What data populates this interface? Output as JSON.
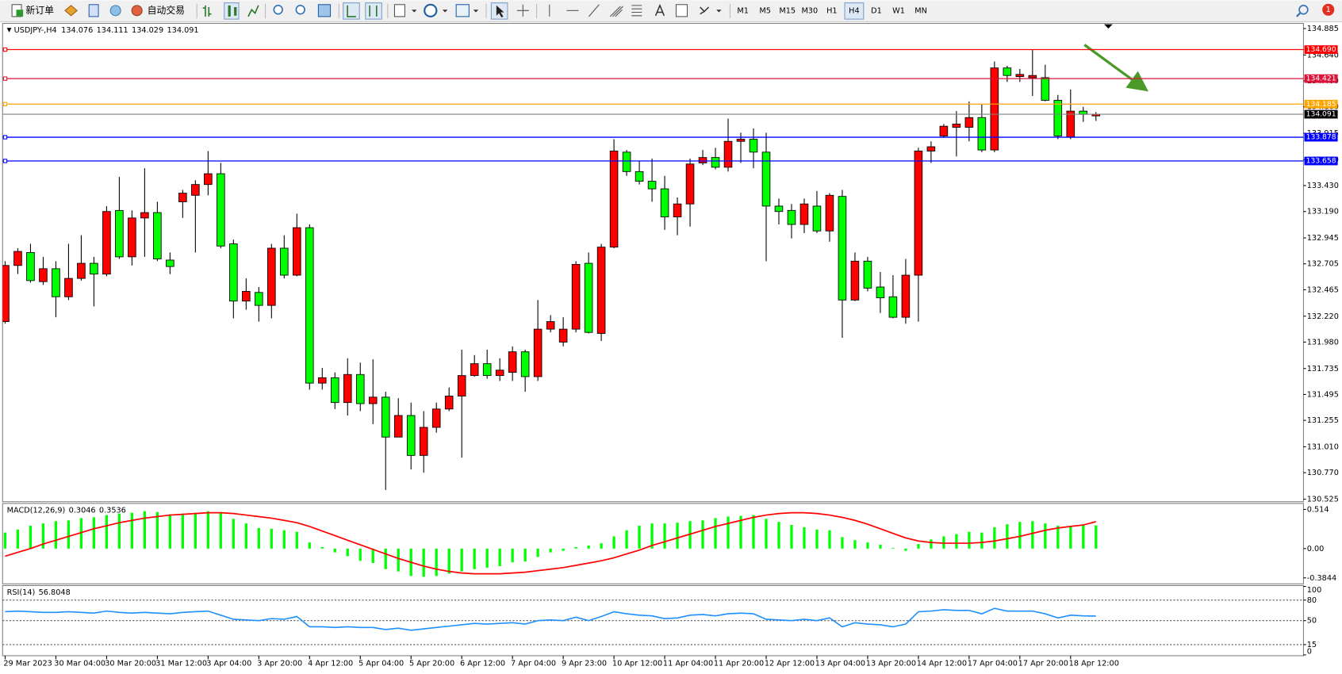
{
  "toolbar": {
    "new_order": "新订单",
    "auto_trading": "自动交易",
    "timeframes": [
      "M1",
      "M5",
      "M15",
      "M30",
      "H1",
      "H4",
      "D1",
      "W1",
      "MN"
    ],
    "notifications": "1"
  },
  "chart_data": [
    {
      "type": "candlestick",
      "title": "USDJPY-,H4",
      "up_color": "#ff0000",
      "down_color": "#00ff00",
      "current_color": "#808080",
      "categories": [
        "29 Mar 2023",
        null,
        null,
        null,
        "30 Mar 04:00",
        null,
        null,
        null,
        "30 Mar 20:00",
        null,
        null,
        null,
        "31 Mar 12:00",
        null,
        null,
        null,
        "3 Apr 04:00",
        null,
        null,
        null,
        "3 Apr 20:00",
        null,
        null,
        null,
        "4 Apr 12:00",
        null,
        null,
        null,
        "5 Apr 04:00",
        null,
        null,
        null,
        "5 Apr 20:00",
        null,
        null,
        null,
        "6 Apr 12:00",
        null,
        null,
        null,
        "7 Apr 04:00",
        null,
        null,
        null,
        "9 Apr 23:00",
        null,
        null,
        null,
        "10 Apr 12:00",
        null,
        null,
        null,
        "11 Apr 04:00",
        null,
        null,
        null,
        "11 Apr 20:00",
        null,
        null,
        null,
        "12 Apr 12:00",
        null,
        null,
        null,
        "13 Apr 04:00",
        null,
        null,
        null,
        "13 Apr 20:00",
        null,
        null,
        null,
        "14 Apr 12:00",
        null,
        null,
        null,
        "17 Apr 04:00",
        null,
        null,
        null,
        "17 Apr 20:00",
        null,
        null,
        null,
        "18 Apr 12:00",
        null,
        null
      ],
      "open": [
        132.17,
        132.69,
        132.81,
        132.54,
        132.66,
        132.4,
        132.57,
        132.71,
        132.61,
        133.2,
        132.77,
        133.13,
        133.18,
        132.74,
        133.28,
        133.34,
        133.44,
        133.54,
        132.89,
        132.36,
        132.44,
        132.32,
        132.85,
        132.6,
        133.04,
        131.6,
        131.65,
        131.42,
        131.68,
        131.41,
        131.47,
        131.1,
        131.3,
        130.93,
        131.19,
        131.36,
        131.48,
        131.67,
        131.78,
        131.67,
        131.7,
        131.89,
        131.66,
        132.1,
        131.98,
        132.1,
        132.71,
        132.06,
        132.86,
        133.74,
        133.56,
        133.47,
        133.4,
        133.14,
        133.26,
        133.64,
        133.69,
        133.6,
        133.84,
        133.86,
        133.74,
        133.24,
        133.2,
        133.07,
        133.24,
        133.01,
        133.33,
        132.37,
        132.73,
        132.49,
        132.4,
        132.21,
        132.6,
        133.75,
        133.89,
        133.97,
        133.97,
        134.06,
        133.76,
        134.52,
        134.44,
        134.43,
        134.43,
        134.22,
        133.88,
        134.12,
        134.076
      ],
      "high": [
        132.73,
        132.85,
        132.89,
        132.77,
        132.73,
        132.89,
        132.97,
        132.77,
        133.24,
        133.51,
        133.2,
        133.59,
        133.28,
        132.81,
        133.39,
        133.48,
        133.75,
        133.64,
        132.93,
        132.57,
        132.49,
        132.89,
        132.97,
        133.17,
        133.07,
        131.74,
        131.7,
        131.83,
        131.79,
        131.82,
        131.52,
        131.46,
        131.42,
        131.34,
        131.42,
        131.56,
        131.91,
        131.86,
        131.91,
        131.83,
        131.94,
        131.91,
        132.37,
        132.23,
        132.21,
        132.73,
        132.81,
        132.89,
        133.86,
        133.76,
        133.66,
        133.68,
        133.52,
        133.32,
        133.68,
        133.76,
        133.78,
        134.05,
        133.92,
        133.96,
        133.92,
        133.31,
        133.26,
        133.31,
        133.38,
        133.36,
        133.39,
        132.81,
        132.77,
        132.63,
        132.6,
        132.75,
        133.78,
        133.84,
        134.0,
        134.12,
        134.21,
        134.18,
        134.58,
        134.54,
        134.51,
        134.69,
        134.55,
        134.27,
        134.32,
        134.16,
        134.111
      ],
      "low": [
        132.15,
        132.61,
        132.53,
        132.51,
        132.21,
        132.37,
        132.55,
        132.31,
        132.59,
        132.75,
        132.69,
        132.77,
        132.73,
        132.61,
        133.13,
        132.81,
        133.34,
        132.85,
        132.2,
        132.28,
        132.17,
        132.2,
        132.57,
        132.59,
        131.54,
        131.54,
        131.36,
        131.3,
        131.34,
        131.22,
        130.61,
        131.1,
        130.8,
        130.77,
        131.14,
        131.34,
        130.91,
        131.66,
        131.64,
        131.62,
        131.62,
        131.52,
        131.62,
        132.07,
        131.94,
        132.07,
        132.06,
        131.99,
        132.85,
        133.52,
        133.44,
        133.28,
        133.02,
        132.97,
        133.05,
        133.62,
        133.58,
        133.56,
        133.64,
        133.59,
        132.73,
        133.07,
        132.94,
        132.99,
        132.99,
        132.91,
        132.02,
        132.36,
        132.45,
        132.25,
        132.2,
        132.15,
        132.17,
        133.64,
        133.88,
        133.7,
        133.84,
        133.74,
        133.74,
        134.39,
        134.39,
        134.26,
        134.21,
        133.86,
        133.86,
        134.02,
        134.029
      ],
      "close": [
        132.69,
        132.82,
        132.55,
        132.66,
        132.4,
        132.57,
        132.71,
        132.61,
        133.19,
        132.77,
        133.13,
        133.18,
        132.75,
        132.68,
        133.36,
        133.44,
        133.54,
        132.87,
        132.36,
        132.45,
        132.32,
        132.85,
        132.6,
        133.04,
        131.6,
        131.65,
        131.42,
        131.68,
        131.41,
        131.47,
        131.1,
        131.3,
        130.93,
        131.19,
        131.36,
        131.48,
        131.67,
        131.78,
        131.67,
        131.72,
        131.89,
        131.66,
        132.1,
        132.17,
        132.1,
        132.7,
        132.07,
        132.86,
        133.75,
        133.56,
        133.47,
        133.4,
        133.14,
        133.26,
        133.63,
        133.69,
        133.6,
        133.84,
        133.86,
        133.74,
        133.24,
        133.19,
        133.07,
        133.26,
        133.01,
        133.34,
        132.37,
        132.73,
        132.48,
        132.39,
        132.21,
        132.6,
        133.75,
        133.79,
        133.98,
        134.0,
        134.06,
        133.76,
        134.52,
        134.45,
        134.46,
        134.45,
        134.22,
        133.89,
        134.12,
        134.09,
        134.091
      ],
      "levels": [
        {
          "value": 134.69,
          "label": "134.690",
          "color": "#ff0000"
        },
        {
          "value": 134.421,
          "color": "#dc143c"
        },
        {
          "value": 134.185,
          "color": "#ffa500"
        },
        {
          "value": 133.878,
          "color": "#0000ff"
        },
        {
          "value": 133.658,
          "color": "#0000ff"
        }
      ],
      "ylim": [
        130.525,
        134.885
      ],
      "yticks": [
        134.885,
        {
          "value": 134.64,
          "label": "134.640"
        },
        {
          "value": 134.4,
          "label": "134.400"
        },
        {
          "value": 134.16,
          "label": "134.160"
        },
        133.915,
        {
          "value": 133.67,
          "label": "133.670"
        },
        {
          "value": 133.43,
          "label": "133.430"
        },
        {
          "value": 133.19,
          "label": "133.190"
        },
        132.945,
        132.705,
        132.465,
        {
          "value": 132.22,
          "label": "132.220"
        },
        {
          "value": 131.98,
          "label": "131.980"
        },
        131.735,
        131.495,
        131.255,
        {
          "value": 131.01,
          "label": "131.010"
        },
        {
          "value": 130.77,
          "label": "130.770"
        },
        130.525
      ]
    },
    {
      "type": "macd",
      "title": "MACD(12,26,9)",
      "histogram": {
        "color": "#00ff00",
        "values": [
          0.21,
          0.25,
          0.3,
          0.33,
          0.36,
          0.37,
          0.4,
          0.41,
          0.44,
          0.46,
          0.47,
          0.49,
          0.48,
          0.45,
          0.46,
          0.47,
          0.49,
          0.48,
          0.39,
          0.33,
          0.27,
          0.26,
          0.24,
          0.22,
          0.08,
          0.02,
          -0.05,
          -0.1,
          -0.16,
          -0.19,
          -0.27,
          -0.3,
          -0.36,
          -0.37,
          -0.36,
          -0.33,
          -0.3,
          -0.27,
          -0.25,
          -0.23,
          -0.18,
          -0.17,
          -0.11,
          -0.05,
          -0.03,
          0.02,
          0.04,
          0.07,
          0.16,
          0.24,
          0.3,
          0.33,
          0.33,
          0.34,
          0.36,
          0.37,
          0.4,
          0.42,
          0.43,
          0.44,
          0.39,
          0.35,
          0.31,
          0.28,
          0.25,
          0.24,
          0.15,
          0.11,
          0.08,
          0.05,
          0.01,
          -0.03,
          0.06,
          0.12,
          0.16,
          0.19,
          0.22,
          0.21,
          0.28,
          0.32,
          0.35,
          0.36,
          0.33,
          0.3,
          0.3,
          0.31,
          0.3046
        ]
      },
      "signal": {
        "color": "#ff0000",
        "values": [
          -0.1,
          -0.05,
          0.0,
          0.06,
          0.11,
          0.16,
          0.21,
          0.26,
          0.3,
          0.34,
          0.37,
          0.4,
          0.42,
          0.44,
          0.45,
          0.46,
          0.47,
          0.47,
          0.46,
          0.44,
          0.42,
          0.4,
          0.37,
          0.34,
          0.29,
          0.23,
          0.17,
          0.11,
          0.05,
          -0.01,
          -0.07,
          -0.13,
          -0.18,
          -0.23,
          -0.27,
          -0.3,
          -0.32,
          -0.33,
          -0.33,
          -0.33,
          -0.32,
          -0.31,
          -0.29,
          -0.27,
          -0.25,
          -0.22,
          -0.19,
          -0.16,
          -0.12,
          -0.07,
          -0.02,
          0.04,
          0.09,
          0.14,
          0.19,
          0.24,
          0.29,
          0.33,
          0.37,
          0.41,
          0.44,
          0.46,
          0.47,
          0.47,
          0.46,
          0.44,
          0.41,
          0.37,
          0.32,
          0.26,
          0.2,
          0.14,
          0.1,
          0.08,
          0.07,
          0.07,
          0.07,
          0.08,
          0.1,
          0.13,
          0.16,
          0.2,
          0.24,
          0.27,
          0.29,
          0.31,
          0.3536
        ]
      },
      "ylim": [
        -0.3844,
        0.514
      ],
      "yticks": [
        0.514,
        {
          "value": 0,
          "label": "0.00"
        },
        -0.3844
      ]
    },
    {
      "type": "line",
      "title": "RSI(14)",
      "color": "#1e90ff",
      "values": [
        63,
        64,
        63,
        62,
        62,
        63,
        62,
        61,
        64,
        62,
        61,
        62,
        61,
        60,
        62,
        63,
        64,
        58,
        52,
        51,
        50,
        53,
        52,
        56,
        41,
        41,
        40,
        41,
        40,
        40,
        37,
        39,
        36,
        38,
        40,
        42,
        44,
        46,
        45,
        46,
        47,
        45,
        50,
        51,
        50,
        55,
        50,
        56,
        63,
        60,
        58,
        57,
        53,
        54,
        58,
        59,
        57,
        60,
        61,
        60,
        52,
        51,
        50,
        52,
        50,
        54,
        41,
        47,
        45,
        44,
        41,
        45,
        63,
        64,
        66,
        65,
        65,
        60,
        68,
        64,
        64,
        64,
        60,
        54,
        58,
        57,
        56.8048
      ],
      "ylim": [
        0,
        100
      ],
      "yticks": [
        100,
        80,
        50,
        15,
        0
      ]
    }
  ]
}
